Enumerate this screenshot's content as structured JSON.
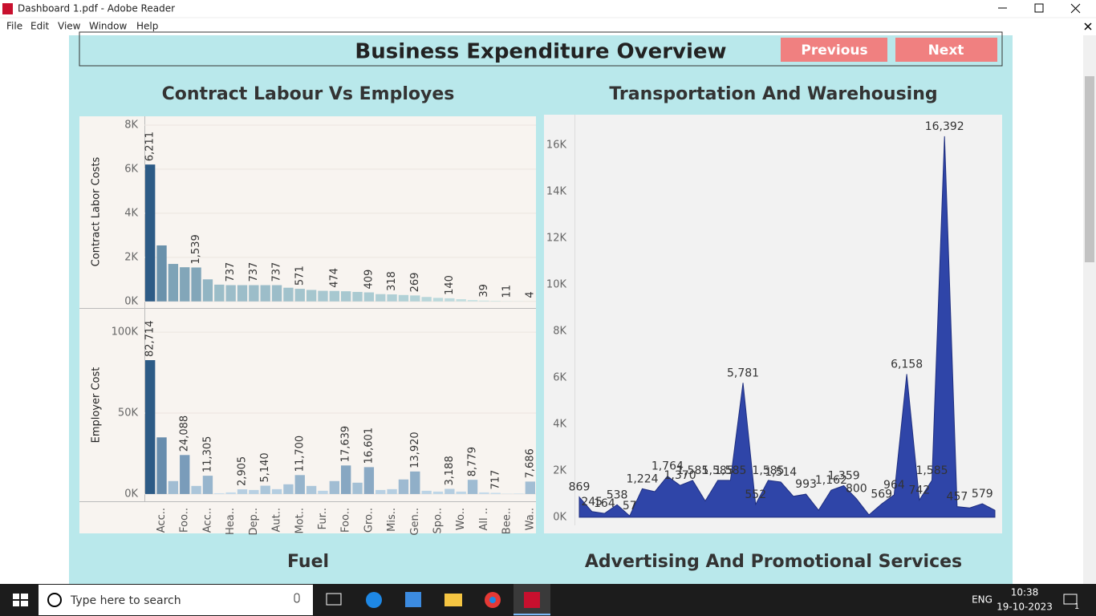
{
  "window": {
    "title": "Dashboard 1.pdf - Adobe Reader",
    "menu": [
      "File",
      "Edit",
      "View",
      "Window",
      "Help"
    ]
  },
  "dashboard": {
    "title": "Business Expenditure Overview",
    "buttons": [
      "Previous",
      "Next"
    ],
    "section_titles": [
      "Contract Labour Vs Employes",
      "Transportation And Warehousing",
      "Fuel",
      "Advertising And Promotional Services"
    ]
  },
  "chart_data": [
    {
      "type": "bar",
      "y_label": "Contract Labor Costs",
      "values": [
        6211,
        2540,
        1700,
        1550,
        1539,
        1000,
        760,
        737,
        737,
        737,
        737,
        737,
        620,
        571,
        520,
        480,
        474,
        460,
        430,
        409,
        330,
        318,
        290,
        269,
        200,
        160,
        140,
        100,
        60,
        39,
        25,
        11,
        8,
        4
      ],
      "value_labels": [
        "6,211",
        null,
        null,
        null,
        "1,539",
        null,
        null,
        "737",
        null,
        "737",
        null,
        "737",
        null,
        "571",
        null,
        null,
        "474",
        null,
        null,
        "409",
        null,
        "318",
        null,
        "269",
        null,
        null,
        "140",
        null,
        null,
        "39",
        null,
        "11",
        null,
        "4"
      ],
      "ylim": [
        -300,
        8400
      ],
      "yticks": [
        {
          "value": 0,
          "label": "0K"
        },
        {
          "value": 2000,
          "label": "2K"
        },
        {
          "value": 4000,
          "label": "4K"
        },
        {
          "value": 6000,
          "label": "6K"
        },
        {
          "value": 8000,
          "label": "8K"
        }
      ],
      "color_range": [
        "#d6f1ec",
        "#2d5b86"
      ],
      "grid": true
    },
    {
      "type": "bar",
      "y_label": "Employer Cost",
      "categories": [
        null,
        "Acc..",
        null,
        "Foo..",
        null,
        "Acc..",
        null,
        "Hea..",
        null,
        "Dep..",
        null,
        "Aut..",
        null,
        "Mot..",
        null,
        "Fur..",
        null,
        "Foo..",
        null,
        "Gro..",
        null,
        "Mis..",
        null,
        "Gen..",
        null,
        "Spo..",
        null,
        "Wo..",
        null,
        "All ..",
        null,
        "Bee..",
        null,
        "Wa.."
      ],
      "values": [
        82714,
        35000,
        8000,
        24088,
        5000,
        11305,
        500,
        1000,
        2905,
        2500,
        5140,
        3000,
        6000,
        11700,
        5000,
        2000,
        8000,
        17639,
        7000,
        16601,
        2500,
        3000,
        9000,
        13920,
        2000,
        1500,
        3188,
        1500,
        8779,
        1000,
        717,
        200,
        300,
        7686
      ],
      "value_labels": [
        "82,714",
        null,
        null,
        "24,088",
        null,
        "11,305",
        null,
        null,
        "2,905",
        null,
        "5,140",
        null,
        null,
        "11,700",
        null,
        null,
        null,
        "17,639",
        null,
        "16,601",
        null,
        null,
        null,
        "13,920",
        null,
        null,
        "3,188",
        null,
        "8,779",
        null,
        "717",
        null,
        null,
        "7,686"
      ],
      "ylim": [
        -4500,
        107000
      ],
      "yticks": [
        {
          "value": 0,
          "label": "0K"
        },
        {
          "value": 50000,
          "label": "50K"
        },
        {
          "value": 100000,
          "label": "100K"
        }
      ],
      "color_range": [
        "#d5e9f6",
        "#2d5b86"
      ],
      "grid": true
    },
    {
      "type": "area",
      "values": [
        869,
        245,
        164,
        538,
        57,
        1224,
        1100,
        1764,
        1370,
        1585,
        700,
        1585,
        1585,
        5781,
        552,
        1585,
        1514,
        900,
        993,
        300,
        1162,
        1359,
        800,
        100,
        569,
        964,
        6158,
        742,
        1585,
        16392,
        457,
        400,
        579,
        300
      ],
      "value_labels": [
        "869",
        "245",
        "164",
        "538",
        "57",
        "1,224",
        null,
        "1,764",
        "1,370",
        "1,585",
        null,
        "1,585",
        "1,585",
        "5,781",
        "552",
        "1,585",
        "1,514",
        null,
        "993",
        null,
        "1,162",
        "1,359",
        "800",
        null,
        "569",
        "964",
        "6,158",
        "742",
        "1,585",
        "16,392",
        "457",
        null,
        "579",
        null
      ],
      "ylim": [
        -350,
        17250
      ],
      "yticks": [
        {
          "value": 0,
          "label": "0K"
        },
        {
          "value": 2000,
          "label": "2K"
        },
        {
          "value": 4000,
          "label": "4K"
        },
        {
          "value": 6000,
          "label": "6K"
        },
        {
          "value": 8000,
          "label": "8K"
        },
        {
          "value": 10000,
          "label": "10K"
        },
        {
          "value": 12000,
          "label": "12K"
        },
        {
          "value": 14000,
          "label": "14K"
        },
        {
          "value": 16000,
          "label": "16K"
        }
      ],
      "color": "#2f45a8"
    }
  ],
  "taskbar": {
    "search": "Type here to search",
    "language": "ENG",
    "time": "10:38",
    "date": "19-10-2023",
    "notifications": 1
  }
}
